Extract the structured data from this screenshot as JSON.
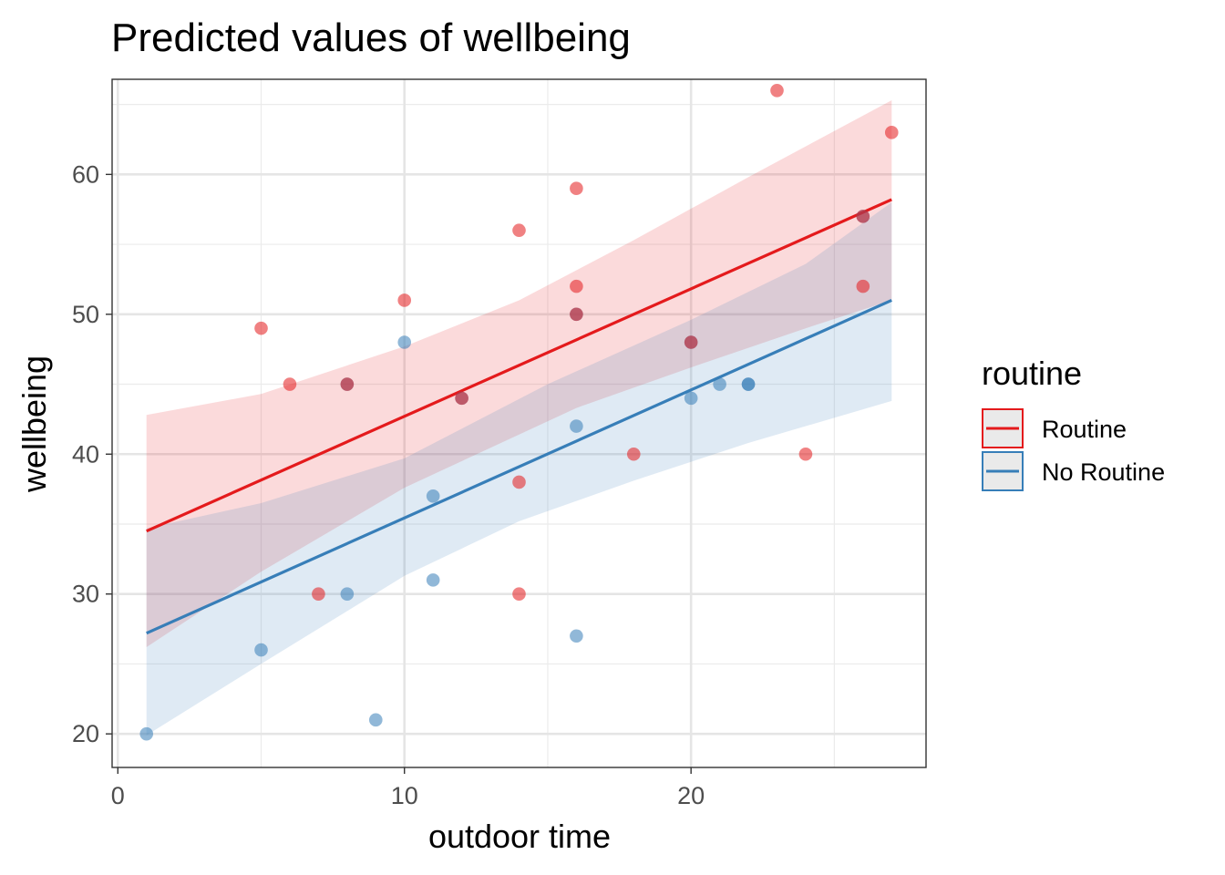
{
  "chart_data": {
    "type": "scatter",
    "title": "Predicted values of wellbeing",
    "xlabel": "outdoor time",
    "ylabel": "wellbeing",
    "xlim": [
      -0.2,
      28.2
    ],
    "ylim": [
      17.6,
      66.8
    ],
    "x_ticks": [
      0,
      10,
      20
    ],
    "y_ticks": [
      20,
      30,
      40,
      50,
      60
    ],
    "x_tick_labels": [
      "0",
      "10",
      "20"
    ],
    "y_tick_labels": [
      "20",
      "30",
      "40",
      "50",
      "60"
    ],
    "grid": true,
    "legend": {
      "title": "routine",
      "position": "right"
    },
    "series": [
      {
        "name": "Routine",
        "color": "#e41a1c",
        "fit": {
          "x_start": 1,
          "y_start": 34.5,
          "x_end": 27,
          "y_end": 58.2
        },
        "ci_lower": [
          [
            1,
            26.2
          ],
          [
            5,
            31.6
          ],
          [
            10,
            37.6
          ],
          [
            16,
            43.3
          ],
          [
            20,
            46.2
          ],
          [
            24,
            49.0
          ],
          [
            27,
            51.0
          ]
        ],
        "ci_upper": [
          [
            1,
            42.8
          ],
          [
            5,
            44.3
          ],
          [
            10,
            47.7
          ],
          [
            14,
            51.0
          ],
          [
            18,
            55.3
          ],
          [
            22,
            59.8
          ],
          [
            27,
            65.3
          ]
        ],
        "points": [
          [
            5,
            49
          ],
          [
            6,
            45
          ],
          [
            7,
            30
          ],
          [
            8,
            45
          ],
          [
            10,
            51
          ],
          [
            12,
            44
          ],
          [
            14,
            56
          ],
          [
            14,
            38
          ],
          [
            14,
            30
          ],
          [
            16,
            59
          ],
          [
            16,
            52
          ],
          [
            16,
            50
          ],
          [
            18,
            40
          ],
          [
            20,
            48
          ],
          [
            23,
            66
          ],
          [
            24,
            40
          ],
          [
            26,
            57
          ],
          [
            26,
            52
          ],
          [
            27,
            63
          ]
        ]
      },
      {
        "name": "No Routine",
        "color": "#377eb8",
        "fit": {
          "x_start": 1,
          "y_start": 27.2,
          "x_end": 27,
          "y_end": 51.0
        },
        "ci_lower": [
          [
            1,
            19.9
          ],
          [
            5,
            25.0
          ],
          [
            10,
            31.3
          ],
          [
            14,
            35.2
          ],
          [
            18,
            38.1
          ],
          [
            22,
            40.8
          ],
          [
            27,
            43.8
          ]
        ],
        "ci_upper": [
          [
            1,
            34.7
          ],
          [
            5,
            36.5
          ],
          [
            10,
            39.7
          ],
          [
            15,
            45.0
          ],
          [
            20,
            49.6
          ],
          [
            24,
            53.6
          ],
          [
            27,
            58.0
          ]
        ],
        "points": [
          [
            1,
            20
          ],
          [
            5,
            26
          ],
          [
            8,
            45
          ],
          [
            8,
            30
          ],
          [
            9,
            21
          ],
          [
            10,
            48
          ],
          [
            11,
            37
          ],
          [
            11,
            31
          ],
          [
            12,
            44
          ],
          [
            16,
            50
          ],
          [
            16,
            42
          ],
          [
            16,
            27
          ],
          [
            20,
            48
          ],
          [
            20,
            44
          ],
          [
            21,
            45
          ],
          [
            22,
            45
          ],
          [
            22,
            45
          ],
          [
            26,
            57
          ]
        ]
      }
    ]
  }
}
